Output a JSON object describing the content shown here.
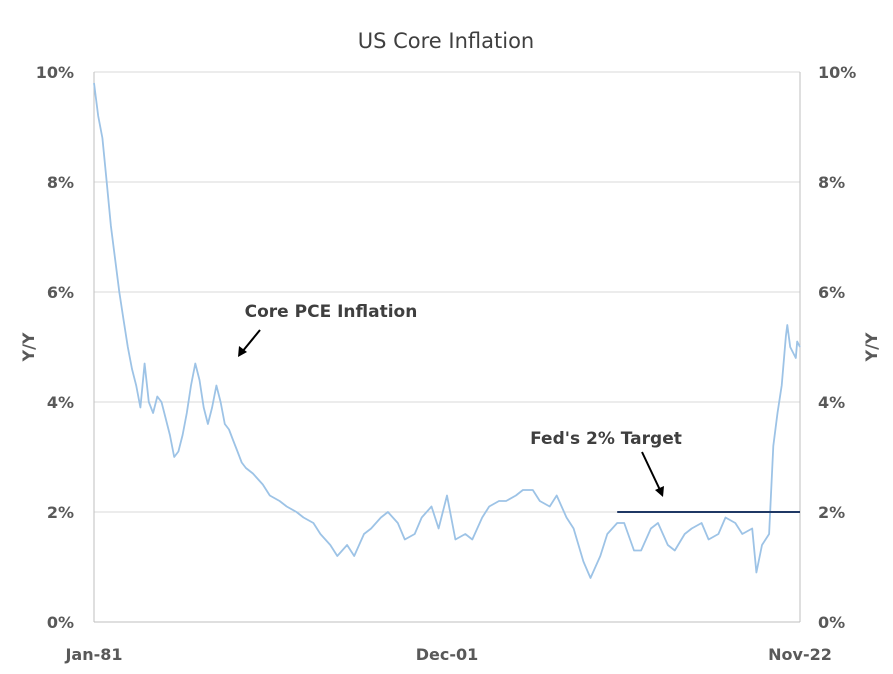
{
  "chart_data": {
    "type": "line",
    "title": "US Core Inflation",
    "ylabel_left": "Y/Y",
    "ylabel_right": "Y/Y",
    "x_range": [
      "1981-01",
      "2022-11"
    ],
    "x_ticks": [
      "Jan-81",
      "Dec-01",
      "Nov-22"
    ],
    "ylim": [
      0,
      10
    ],
    "y_ticks": [
      "0%",
      "2%",
      "4%",
      "6%",
      "8%",
      "10%"
    ],
    "y_tick_values": [
      0,
      2,
      4,
      6,
      8,
      10
    ],
    "grid": "horizontal",
    "series": [
      {
        "name": "Core PCE Inflation",
        "color": "#9dc3e6",
        "x": [
          "1981-01",
          "1981-04",
          "1981-07",
          "1981-10",
          "1982-01",
          "1982-04",
          "1982-07",
          "1982-10",
          "1983-01",
          "1983-04",
          "1983-07",
          "1983-10",
          "1984-01",
          "1984-04",
          "1984-07",
          "1984-10",
          "1985-01",
          "1985-04",
          "1985-07",
          "1985-10",
          "1986-01",
          "1986-04",
          "1986-07",
          "1986-10",
          "1987-01",
          "1987-04",
          "1987-07",
          "1987-10",
          "1988-01",
          "1988-04",
          "1988-07",
          "1988-10",
          "1989-01",
          "1989-04",
          "1989-07",
          "1989-10",
          "1990-01",
          "1990-06",
          "1991-01",
          "1991-06",
          "1992-01",
          "1992-06",
          "1993-01",
          "1993-06",
          "1994-01",
          "1994-06",
          "1995-01",
          "1995-06",
          "1996-01",
          "1996-06",
          "1997-01",
          "1997-06",
          "1998-01",
          "1998-06",
          "1999-01",
          "1999-06",
          "2000-01",
          "2000-06",
          "2001-01",
          "2001-06",
          "2001-12",
          "2002-06",
          "2003-01",
          "2003-06",
          "2004-01",
          "2004-06",
          "2005-01",
          "2005-06",
          "2006-01",
          "2006-06",
          "2007-01",
          "2007-06",
          "2008-01",
          "2008-06",
          "2009-01",
          "2009-06",
          "2010-01",
          "2010-06",
          "2011-01",
          "2011-06",
          "2012-01",
          "2012-06",
          "2013-01",
          "2013-06",
          "2014-01",
          "2014-06",
          "2015-01",
          "2015-06",
          "2016-01",
          "2016-06",
          "2017-01",
          "2017-06",
          "2018-01",
          "2018-06",
          "2019-01",
          "2019-06",
          "2020-01",
          "2020-04",
          "2020-08",
          "2021-01",
          "2021-04",
          "2021-07",
          "2021-10",
          "2022-01",
          "2022-02",
          "2022-04",
          "2022-06",
          "2022-08",
          "2022-09",
          "2022-11"
        ],
        "values": [
          9.8,
          9.2,
          8.8,
          8.0,
          7.2,
          6.6,
          6.0,
          5.5,
          5.0,
          4.6,
          4.3,
          3.9,
          4.7,
          4.0,
          3.8,
          4.1,
          4.0,
          3.7,
          3.4,
          3.0,
          3.1,
          3.4,
          3.8,
          4.3,
          4.7,
          4.4,
          3.9,
          3.6,
          3.9,
          4.3,
          4.0,
          3.6,
          3.5,
          3.3,
          3.1,
          2.9,
          2.8,
          2.7,
          2.5,
          2.3,
          2.2,
          2.1,
          2.0,
          1.9,
          1.8,
          1.6,
          1.4,
          1.2,
          1.4,
          1.2,
          1.6,
          1.7,
          1.9,
          2.0,
          1.8,
          1.5,
          1.6,
          1.9,
          2.1,
          1.7,
          2.3,
          1.5,
          1.6,
          1.5,
          1.9,
          2.1,
          2.2,
          2.2,
          2.3,
          2.4,
          2.4,
          2.2,
          2.1,
          2.3,
          1.9,
          1.7,
          1.1,
          0.8,
          1.2,
          1.6,
          1.8,
          1.8,
          1.3,
          1.3,
          1.7,
          1.8,
          1.4,
          1.3,
          1.6,
          1.7,
          1.8,
          1.5,
          1.6,
          1.9,
          1.8,
          1.6,
          1.7,
          0.9,
          1.4,
          1.6,
          3.2,
          3.8,
          4.3,
          5.2,
          5.4,
          5.0,
          4.9,
          4.8,
          5.1,
          5.0
        ]
      },
      {
        "name": "Fed's 2% Target",
        "color": "#1f3864",
        "x": [
          "2012-01",
          "2022-11"
        ],
        "values": [
          2.0,
          2.0
        ]
      }
    ],
    "annotations": [
      {
        "text": "Core PCE Inflation",
        "points_to": "1987-01"
      },
      {
        "text": "Fed's 2% Target",
        "points_to": "2015-06"
      }
    ]
  }
}
